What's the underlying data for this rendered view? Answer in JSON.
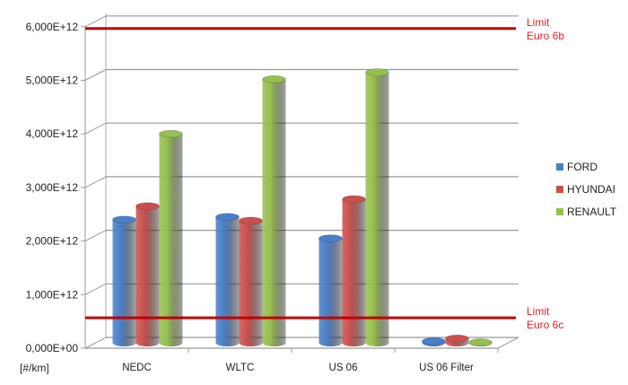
{
  "chart_data": {
    "type": "bar",
    "style": "3d-cylinder",
    "title": "",
    "xlabel": "",
    "ylabel": "",
    "unit_label": "[#/km]",
    "categories": [
      "NEDC",
      "WLTC",
      "US 06",
      "US 06 Filter"
    ],
    "ylim": [
      0,
      6000000000000.0
    ],
    "yticks": [
      "0,000E+00",
      "1,000E+12",
      "2,000E+12",
      "3,000E+12",
      "4,000E+12",
      "5,000E+12",
      "6,000E+12"
    ],
    "grid": true,
    "legend_position": "right",
    "series": [
      {
        "name": "FORD",
        "color": "#4a7fc8",
        "values": [
          2300000000000.0,
          2350000000000.0,
          1950000000000.0,
          30000000000.0
        ]
      },
      {
        "name": "HYUNDAI",
        "color": "#c9504d",
        "values": [
          2550000000000.0,
          2280000000000.0,
          2680000000000.0,
          80000000000.0
        ]
      },
      {
        "name": "RENAULT",
        "color": "#97bf4f",
        "values": [
          3900000000000.0,
          4920000000000.0,
          5050000000000.0,
          10000000000.0
        ]
      }
    ],
    "reference_lines": [
      {
        "label_line1": "Limit",
        "label_line2": "Euro 6b",
        "value": 6000000000000.0,
        "color": "#c00000"
      },
      {
        "label_line1": "Limit",
        "label_line2": "Euro 6c",
        "value": 600000000000.0,
        "color": "#c00000"
      }
    ]
  }
}
